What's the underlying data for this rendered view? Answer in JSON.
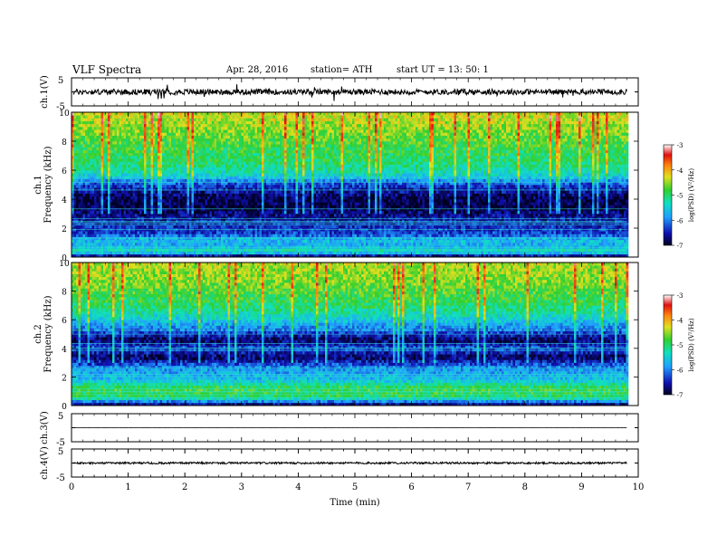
{
  "header": {
    "title": "VLF Spectra",
    "date": "Apr. 28, 2016",
    "station": "station= ATH",
    "start": "start UT =   13: 50: 1"
  },
  "chart_data": [
    {
      "type": "line",
      "panel": "ch1-waveform",
      "ylabel": "ch.1(V)",
      "ylim": [
        -5,
        5
      ],
      "yticks": [
        "5",
        "-5"
      ],
      "xlim": [
        0,
        10
      ],
      "note_values": {
        "baseline": 0,
        "noise_amplitude": 1
      }
    },
    {
      "type": "heatmap",
      "panel": "ch1-spectrogram",
      "ylabel_top": "ch.1",
      "ylabel": "Frequency  (kHz)",
      "ylim": [
        0,
        10
      ],
      "yticks": [
        "0",
        "2",
        "4",
        "6",
        "8",
        "10"
      ],
      "xlim": [
        0,
        9.8
      ],
      "colorbar": {
        "label": "log(PSD) (V²/Hz)",
        "ticks": [
          "-3",
          "-4",
          "-5",
          "-6",
          "-7"
        ],
        "range": [
          -7,
          -3
        ]
      },
      "profile": [
        {
          "f": 0.0,
          "v": -6.9
        },
        {
          "f": 0.4,
          "v": -5.2
        },
        {
          "f": 0.8,
          "v": -5.8
        },
        {
          "f": 1.2,
          "v": -5.6
        },
        {
          "f": 1.6,
          "v": -6.3
        },
        {
          "f": 2.2,
          "v": -6.4
        },
        {
          "f": 2.8,
          "v": -6.6
        },
        {
          "f": 3.4,
          "v": -6.9
        },
        {
          "f": 4.2,
          "v": -6.8
        },
        {
          "f": 5.0,
          "v": -6.3
        },
        {
          "f": 5.8,
          "v": -5.3
        },
        {
          "f": 6.6,
          "v": -5.0
        },
        {
          "f": 7.4,
          "v": -4.9
        },
        {
          "f": 8.2,
          "v": -4.7
        },
        {
          "f": 9.0,
          "v": -4.5
        },
        {
          "f": 10.0,
          "v": -4.3
        }
      ]
    },
    {
      "type": "heatmap",
      "panel": "ch2-spectrogram",
      "ylabel_top": "ch.2",
      "ylabel": "Frequency  (kHz)",
      "ylim": [
        0,
        10
      ],
      "yticks": [
        "0",
        "2",
        "4",
        "6",
        "8",
        "10"
      ],
      "xlim": [
        0,
        9.8
      ],
      "colorbar": {
        "label": "log(PSD) (V²/Hz)",
        "ticks": [
          "-3",
          "-4",
          "-5",
          "-6",
          "-7"
        ],
        "range": [
          -7,
          -3
        ]
      },
      "profile": [
        {
          "f": 0.0,
          "v": -6.9
        },
        {
          "f": 0.6,
          "v": -5.0
        },
        {
          "f": 1.2,
          "v": -4.8
        },
        {
          "f": 1.8,
          "v": -5.6
        },
        {
          "f": 2.6,
          "v": -5.9
        },
        {
          "f": 3.4,
          "v": -6.8
        },
        {
          "f": 4.0,
          "v": -6.2
        },
        {
          "f": 4.6,
          "v": -6.8
        },
        {
          "f": 5.4,
          "v": -6.0
        },
        {
          "f": 6.2,
          "v": -5.4
        },
        {
          "f": 7.0,
          "v": -5.0
        },
        {
          "f": 7.8,
          "v": -4.8
        },
        {
          "f": 8.6,
          "v": -4.6
        },
        {
          "f": 10.0,
          "v": -4.4
        }
      ]
    },
    {
      "type": "line",
      "panel": "ch3-waveform",
      "ylabel": "ch.3(V)",
      "ylim": [
        -5,
        5
      ],
      "yticks": [
        "5",
        "-5"
      ],
      "note_values": {
        "baseline": 0,
        "noise_amplitude": 0.05
      }
    },
    {
      "type": "line",
      "panel": "ch4-waveform",
      "ylabel": "ch.4(V)",
      "ylim": [
        -5,
        5
      ],
      "yticks": [
        "5",
        "-5"
      ],
      "xlabel": "Time  (min)",
      "xticks": [
        "0",
        "1",
        "2",
        "3",
        "4",
        "5",
        "6",
        "7",
        "8",
        "9",
        "10"
      ],
      "xlim": [
        0,
        10
      ],
      "note_values": {
        "baseline": 0,
        "noise_amplitude": 0.35
      }
    }
  ]
}
